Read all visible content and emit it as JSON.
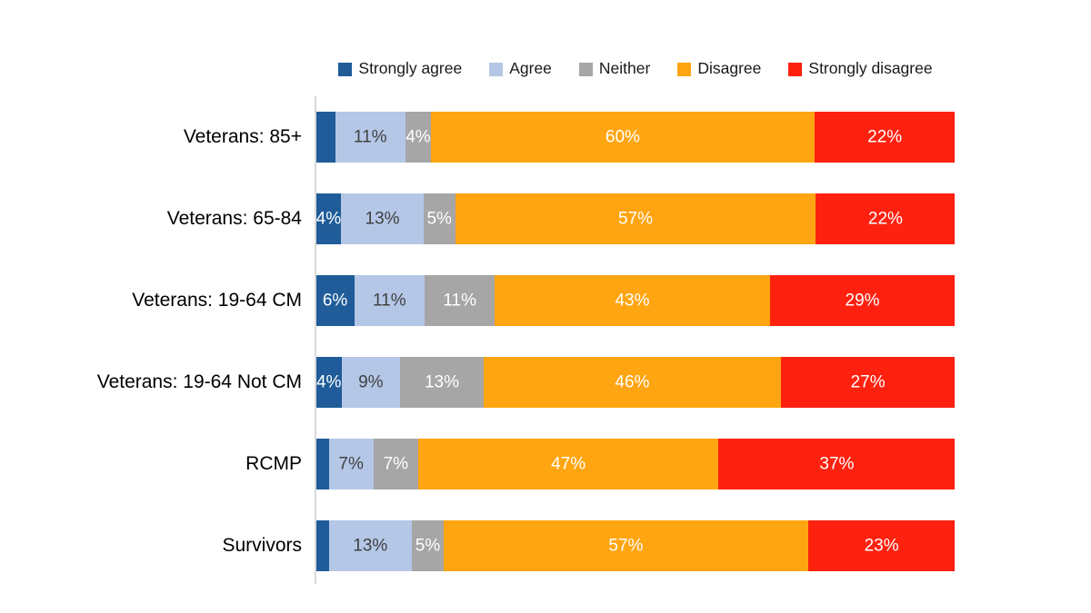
{
  "chart_data": {
    "type": "bar",
    "orientation": "horizontal_stacked",
    "title": "",
    "xlabel": "",
    "ylabel": "",
    "unit": "percent",
    "xlim": [
      0,
      100
    ],
    "gridlines": false,
    "legend_position": "top",
    "categories": [
      "Veterans: 85+",
      "Veterans: 65-84",
      "Veterans: 19-64 CM",
      "Veterans: 19-64 Not CM",
      "RCMP",
      "Survivors"
    ],
    "series": [
      {
        "name": "Strongly agree",
        "color": "#1F5C99",
        "label_color": "#FFFFFF",
        "values": [
          3,
          4,
          6,
          4,
          2,
          2
        ],
        "labels": [
          "",
          "4%",
          "6%",
          "4%",
          "",
          ""
        ]
      },
      {
        "name": "Agree",
        "color": "#B4C7E7",
        "label_color": "#404040",
        "values": [
          11,
          13,
          11,
          9,
          7,
          13
        ],
        "labels": [
          "11%",
          "13%",
          "11%",
          "9%",
          "7%",
          "13%"
        ]
      },
      {
        "name": "Neither",
        "color": "#A6A6A6",
        "label_color": "#FFFFFF",
        "values": [
          4,
          5,
          11,
          13,
          7,
          5
        ],
        "labels": [
          "4%",
          "5%",
          "11%",
          "13%",
          "7%",
          "5%"
        ]
      },
      {
        "name": "Disagree",
        "color": "#FFA511",
        "label_color": "#FFFFFF",
        "values": [
          60,
          57,
          43,
          46,
          47,
          57
        ],
        "labels": [
          "60%",
          "57%",
          "43%",
          "46%",
          "47%",
          "57%"
        ]
      },
      {
        "name": "Strongly disagree",
        "color": "#FF2110",
        "label_color": "#FFFFFF",
        "values": [
          22,
          22,
          29,
          27,
          37,
          23
        ],
        "labels": [
          "22%",
          "22%",
          "29%",
          "27%",
          "37%",
          "23%"
        ]
      }
    ]
  },
  "layout_colors": {
    "background": "#FFFFFF",
    "axis_line": "#D9D9D9",
    "category_text": "#000000",
    "legend_text": "#1A1A1A"
  }
}
